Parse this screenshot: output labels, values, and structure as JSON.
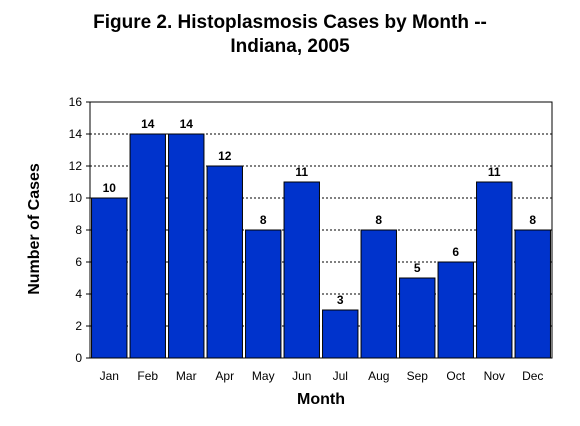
{
  "chart_data": {
    "type": "bar",
    "title_lines": [
      "Figure 2. Histoplasmosis Cases by Month --",
      "Indiana, 2005"
    ],
    "xlabel": "Month",
    "ylabel": "Number of Cases",
    "categories": [
      "Jan",
      "Feb",
      "Mar",
      "Apr",
      "May",
      "Jun",
      "Jul",
      "Aug",
      "Sep",
      "Oct",
      "Nov",
      "Dec"
    ],
    "values": [
      10,
      14,
      14,
      12,
      8,
      11,
      3,
      8,
      5,
      6,
      11,
      8
    ],
    "ylim": [
      0,
      16
    ],
    "yticks": [
      0,
      2,
      4,
      6,
      8,
      10,
      12,
      14,
      16
    ],
    "grid": true,
    "bar_color": "#0033cc",
    "data_labels": true
  }
}
